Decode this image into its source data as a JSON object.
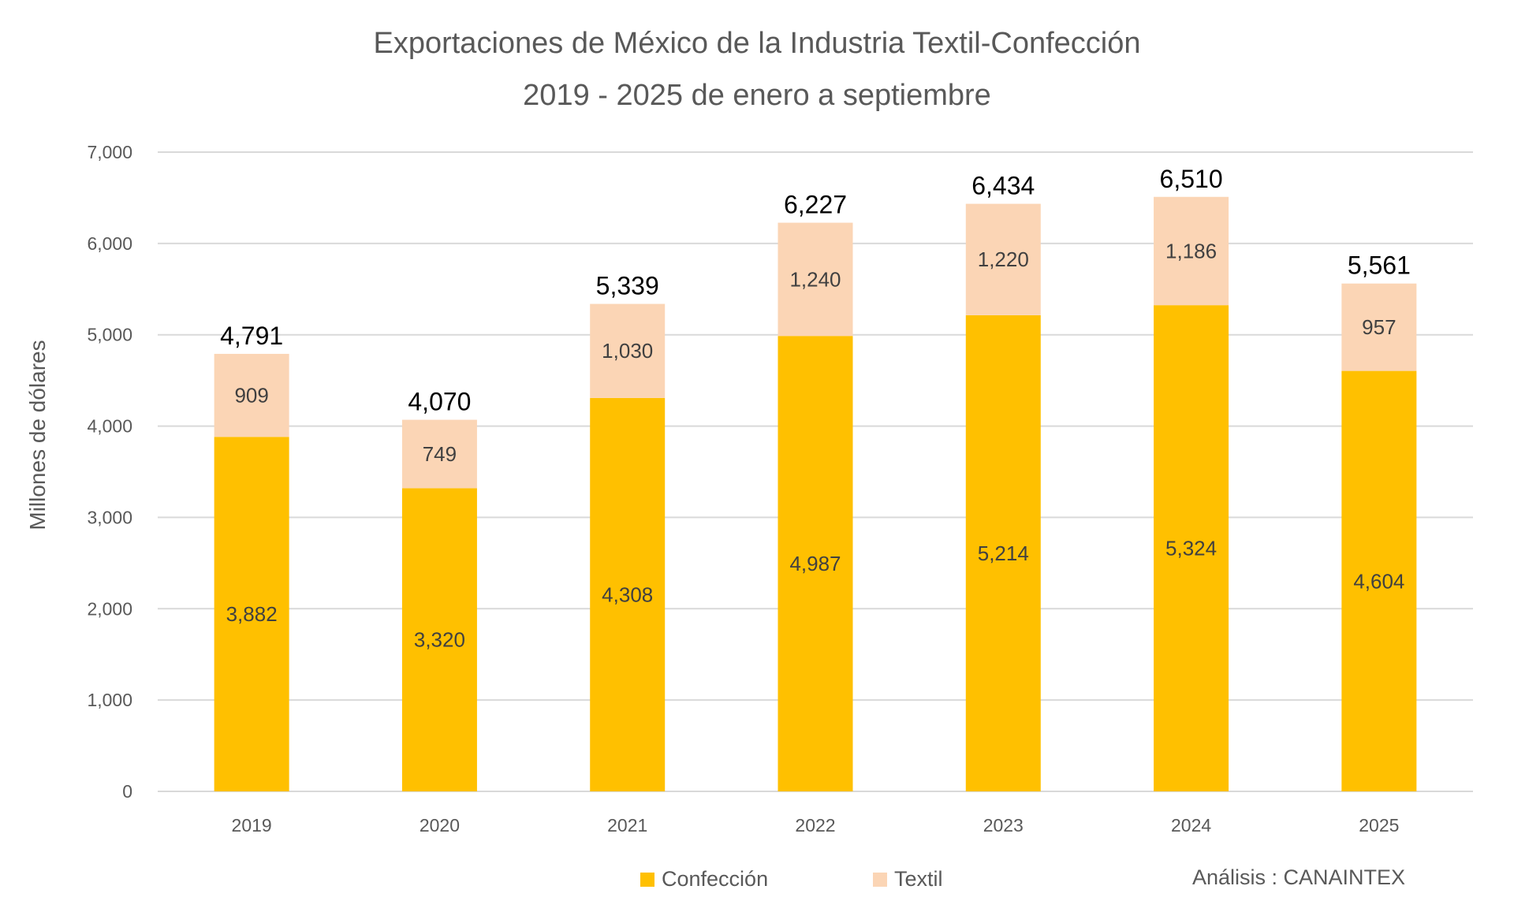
{
  "chart_data": {
    "type": "bar",
    "stacked": true,
    "title": "Exportaciones de México de la Industria Textil-Confección",
    "subtitle": "2019 - 2025 de enero a septiembre",
    "xlabel": "",
    "ylabel": "Millones de dólares",
    "ylim": [
      0,
      7000
    ],
    "yticks": [
      0,
      1000,
      2000,
      3000,
      4000,
      5000,
      6000,
      7000
    ],
    "ytick_labels": [
      "0",
      "1,000",
      "2,000",
      "3,000",
      "4,000",
      "5,000",
      "6,000",
      "7,000"
    ],
    "grid": true,
    "categories": [
      "2019",
      "2020",
      "2021",
      "2022",
      "2023",
      "2024",
      "2025"
    ],
    "series": [
      {
        "name": "Confección",
        "color": "#FFC000",
        "values": [
          3882,
          3320,
          4308,
          4987,
          5214,
          5324,
          4604
        ],
        "labels": [
          "3,882",
          "3,320",
          "4,308",
          "4,987",
          "5,214",
          "5,324",
          "4,604"
        ]
      },
      {
        "name": "Textil",
        "color": "#FBD5B5",
        "values": [
          909,
          749,
          1030,
          1240,
          1220,
          1186,
          957
        ],
        "labels": [
          "909",
          "749",
          "1,030",
          "1,240",
          "1,220",
          "1,186",
          "957"
        ]
      }
    ],
    "totals": [
      4791,
      4070,
      5339,
      6227,
      6434,
      6510,
      5561
    ],
    "total_labels": [
      "4,791",
      "4,070",
      "5,339",
      "6,227",
      "6,434",
      "6,510",
      "5,561"
    ],
    "legend": {
      "position": "bottom",
      "entries": [
        "Confección",
        "Textil"
      ]
    },
    "annotation": "Análisis : CANAINTEX"
  }
}
